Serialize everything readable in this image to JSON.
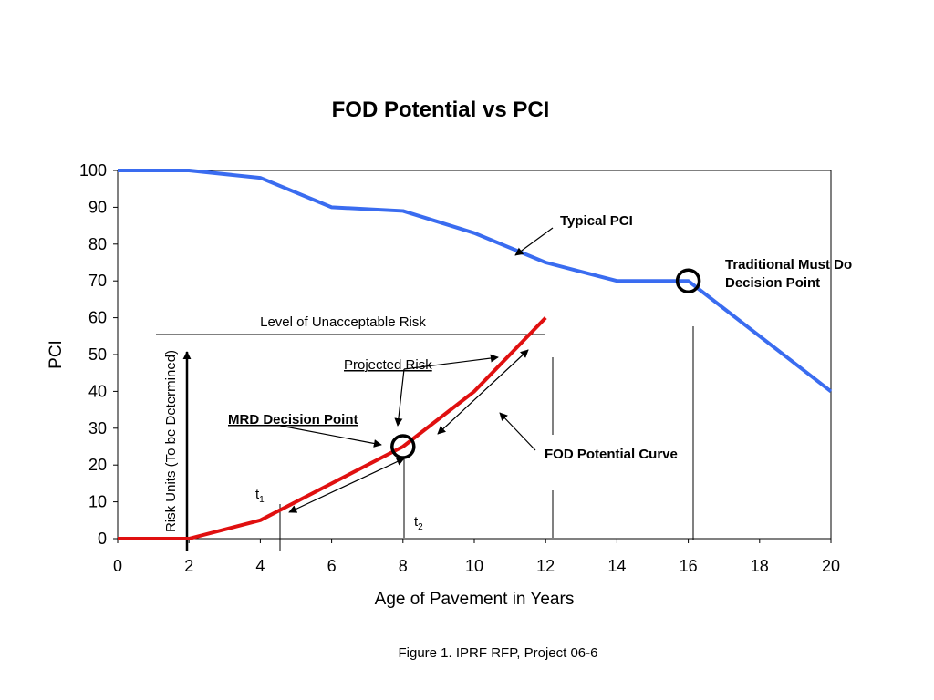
{
  "chart_data": {
    "type": "line",
    "title": "FOD Potential vs PCI",
    "xlabel": "Age of Pavement in Years",
    "ylabel": "PCI",
    "xlim": [
      0,
      20
    ],
    "ylim": [
      0,
      100
    ],
    "x_ticks": [
      "0",
      "2",
      "4",
      "6",
      "8",
      "10",
      "12",
      "14",
      "16",
      "18",
      "20"
    ],
    "y_ticks": [
      "0",
      "10",
      "20",
      "30",
      "40",
      "50",
      "60",
      "70",
      "80",
      "90",
      "100"
    ],
    "grid": false,
    "series": [
      {
        "color": "#3a6cf0",
        "points": [
          [
            0,
            100
          ],
          [
            2,
            100
          ],
          [
            4,
            98
          ],
          [
            6,
            90
          ],
          [
            8,
            89
          ],
          [
            10,
            83
          ],
          [
            12,
            75
          ],
          [
            14,
            70
          ],
          [
            16,
            70
          ],
          [
            20,
            40
          ]
        ]
      },
      {
        "color": "#e01010",
        "points": [
          [
            0,
            0
          ],
          [
            2,
            0
          ],
          [
            4,
            5
          ],
          [
            6,
            15
          ],
          [
            8,
            25
          ],
          [
            10,
            40
          ],
          [
            12,
            60
          ]
        ]
      }
    ],
    "secondary_ylabel": "Risk Units (To be Determined)",
    "annotations": {
      "typical_pci": "Typical PCI",
      "traditional_must_do_line1": "Traditional Must Do",
      "traditional_must_do_line2": "Decision Point",
      "level_unacceptable_risk": "Level of Unacceptable Risk",
      "projected_risk": "Projected Risk",
      "mrd_decision_point": "MRD Decision Point",
      "fod_potential_curve": "FOD Potential Curve",
      "t1_main": "t",
      "t1_sub": "1",
      "t2_main": "t",
      "t2_sub": "2"
    },
    "risk_limit_y": 56,
    "mrd_point": [
      8,
      25
    ],
    "must_do_point": [
      16,
      70
    ],
    "t1_x": 4.5,
    "t2_x": 8
  },
  "caption": "Figure 1.  IPRF RFP, Project 06-6"
}
